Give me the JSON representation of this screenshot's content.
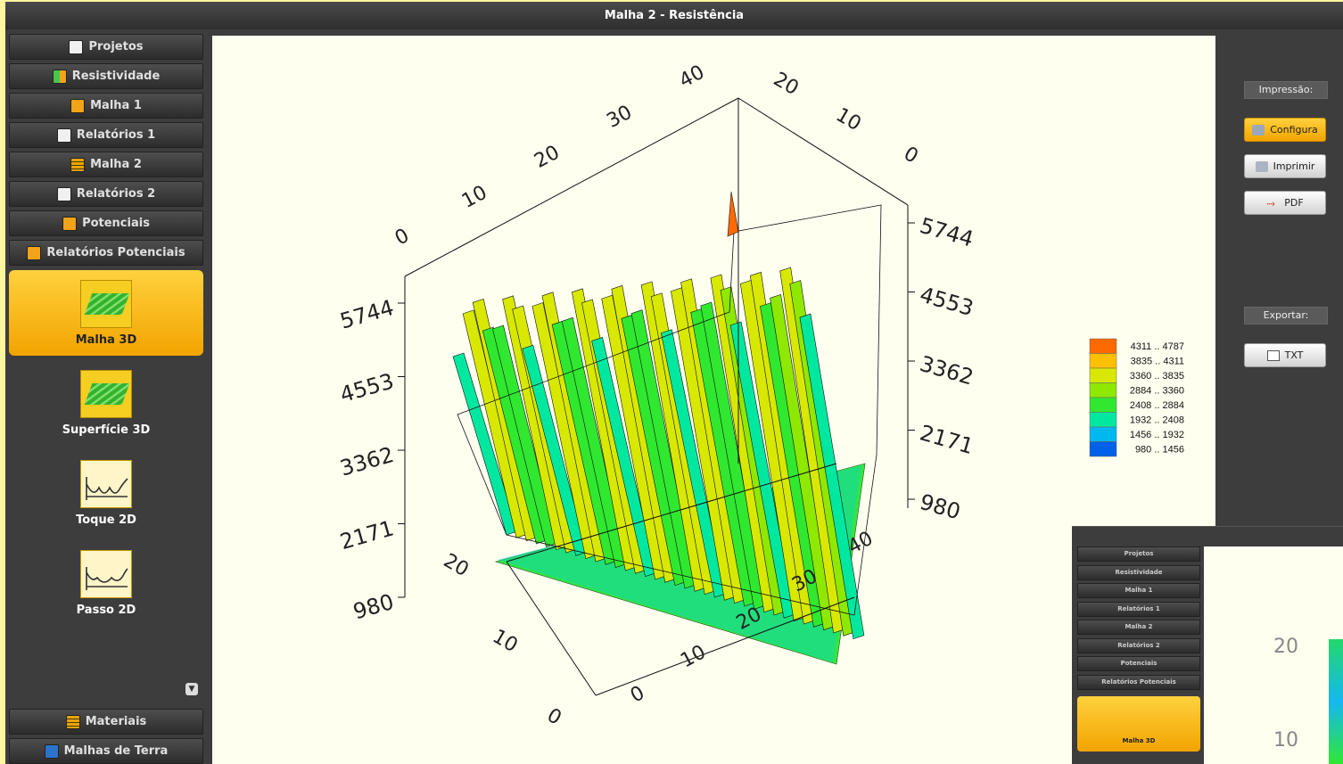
{
  "window": {
    "title": "Malha 2 - Resistência"
  },
  "sidebar": {
    "top_items": [
      {
        "label": "Projetos",
        "icon": "document-icon"
      },
      {
        "label": "Resistividade",
        "icon": "resistivity-icon"
      },
      {
        "label": "Malha 1",
        "icon": "grid-chart-icon"
      },
      {
        "label": "Relatórios 1",
        "icon": "document-icon"
      },
      {
        "label": "Malha 2",
        "icon": "grid-icon"
      },
      {
        "label": "Relatórios 2",
        "icon": "document-icon"
      },
      {
        "label": "Potenciais",
        "icon": "grid-chart-icon"
      },
      {
        "label": "Relatórios Potenciais",
        "icon": "grid-chart-icon"
      }
    ],
    "tiles": [
      {
        "label": "Malha 3D",
        "icon": "mesh-3d-icon",
        "active": true
      },
      {
        "label": "Superfície 3D",
        "icon": "surface-3d-icon",
        "active": false
      },
      {
        "label": "Toque 2D",
        "icon": "touch-curve-icon",
        "active": false
      },
      {
        "label": "Passo 2D",
        "icon": "step-curve-icon",
        "active": false
      }
    ],
    "bottom_items": [
      {
        "label": "Materiais",
        "icon": "materials-icon"
      },
      {
        "label": "Malhas de Terra",
        "icon": "ground-mesh-icon"
      }
    ]
  },
  "right_panel": {
    "print_label": "Impressão:",
    "config_button": "Configura",
    "print_button": "Imprimir",
    "pdf_button": "PDF",
    "export_label": "Exportar:",
    "txt_button": "TXT"
  },
  "chart_data": {
    "type": "3d-surface",
    "x_ticks": [
      "0",
      "10",
      "20",
      "30",
      "40"
    ],
    "y_ticks": [
      "0",
      "10",
      "20"
    ],
    "z_ticks": [
      "980",
      "2171",
      "3362",
      "4553",
      "5744"
    ],
    "zlim": [
      980,
      5744
    ],
    "legend": [
      {
        "range": "4311 .. 4787",
        "color": "#ff6a00"
      },
      {
        "range": "3835 .. 4311",
        "color": "#ffc000"
      },
      {
        "range": "3360 .. 3835",
        "color": "#d8e800"
      },
      {
        "range": "2884 .. 3360",
        "color": "#8ee800"
      },
      {
        "range": "2408 .. 2884",
        "color": "#30e830"
      },
      {
        "range": "1932 .. 2408",
        "color": "#00e8a0"
      },
      {
        "range": "1456 .. 1932",
        "color": "#00b8f0"
      },
      {
        "range": "980 .. 1456",
        "color": "#0060e8"
      }
    ]
  },
  "thumbnail": {
    "items": [
      "Projetos",
      "Resistividade",
      "Malha 1",
      "Relatórios 1",
      "Malha 2",
      "Relatórios 2",
      "Potenciais",
      "Relatórios Potenciais"
    ],
    "tile_label": "Malha 3D",
    "y_ticks": [
      "20",
      "10"
    ]
  }
}
